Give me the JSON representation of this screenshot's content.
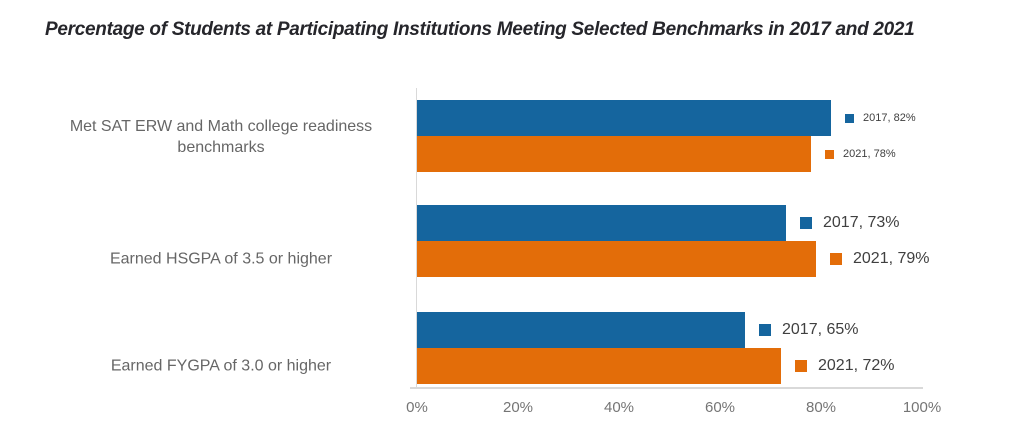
{
  "title": "Percentage of Students at Participating Institutions Meeting Selected Benchmarks in 2017 and 2021",
  "colors": {
    "series_2017": "#15659E",
    "series_2021": "#E36D09",
    "axis_line": "#D9D9D9",
    "title_text": "#26262B",
    "category_text": "#666666",
    "tick_text": "#757575",
    "data_label_text": "#404040",
    "background": "#FFFFFF"
  },
  "chart_data": {
    "type": "bar",
    "orientation": "horizontal",
    "title": "Percentage of Students at Participating Institutions Meeting Selected Benchmarks in 2017 and 2021",
    "xlabel": "",
    "ylabel": "",
    "xlim": [
      0,
      100
    ],
    "grid": false,
    "legend_position": "none",
    "x_axis_ticks": [
      "0%",
      "20%",
      "40%",
      "60%",
      "80%",
      "100%"
    ],
    "categories": [
      "Met SAT ERW and Math college readiness benchmarks",
      "Earned HSGPA of 3.5 or higher",
      "Earned FYGPA of 3.0 or higher"
    ],
    "series": [
      {
        "name": "2017",
        "values": [
          82,
          73,
          65
        ]
      },
      {
        "name": "2021",
        "values": [
          78,
          79,
          72
        ]
      }
    ],
    "groups": [
      {
        "category": "Met SAT ERW and Math college readiness benchmarks",
        "bars": [
          {
            "series": "2017",
            "value": 82,
            "label": "2017, 82%"
          },
          {
            "series": "2021",
            "value": 78,
            "label": "2021, 78%"
          }
        ]
      },
      {
        "category": "Earned HSGPA of 3.5 or higher",
        "bars": [
          {
            "series": "2017",
            "value": 73,
            "label": "2017, 73%"
          },
          {
            "series": "2021",
            "value": 79,
            "label": "2021, 79%"
          }
        ]
      },
      {
        "category": "Earned FYGPA of 3.0 or higher",
        "bars": [
          {
            "series": "2017",
            "value": 65,
            "label": "2017, 65%"
          },
          {
            "series": "2021",
            "value": 72,
            "label": "2021, 72%"
          }
        ]
      }
    ]
  }
}
